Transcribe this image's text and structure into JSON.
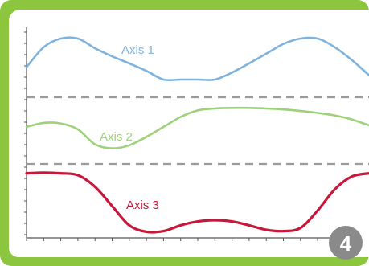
{
  "step_badge": {
    "number": "4"
  },
  "chart_data": {
    "type": "line",
    "title": "",
    "xlabel": "",
    "ylabel": "",
    "grid": false,
    "x": [
      0,
      1,
      2,
      3,
      4,
      5,
      6,
      7,
      8,
      9,
      10,
      11,
      12,
      13,
      14,
      15,
      16,
      17,
      18,
      19,
      20
    ],
    "panels": [
      {
        "id": 1,
        "ylim": [
          0,
          1
        ]
      },
      {
        "id": 2,
        "ylim": [
          0,
          1
        ]
      },
      {
        "id": 3,
        "ylim": [
          0,
          1
        ]
      }
    ],
    "series": [
      {
        "name": "Axis 1",
        "panel": 1,
        "color": "#7fb3dd",
        "values": [
          0.35,
          0.72,
          0.88,
          0.88,
          0.7,
          0.55,
          0.42,
          0.28,
          0.12,
          0.12,
          0.12,
          0.12,
          0.25,
          0.42,
          0.6,
          0.78,
          0.88,
          0.88,
          0.72,
          0.48,
          0.2
        ]
      },
      {
        "name": "Axis 2",
        "panel": 2,
        "color": "#9dd17a",
        "values": [
          0.55,
          0.63,
          0.62,
          0.5,
          0.2,
          0.12,
          0.18,
          0.35,
          0.55,
          0.75,
          0.88,
          0.92,
          0.93,
          0.93,
          0.92,
          0.9,
          0.87,
          0.83,
          0.78,
          0.7,
          0.58
        ]
      },
      {
        "name": "Axis 3",
        "panel": 3,
        "color": "#c8173a",
        "values": [
          0.93,
          0.94,
          0.93,
          0.9,
          0.72,
          0.42,
          0.12,
          0.02,
          0.03,
          0.12,
          0.18,
          0.2,
          0.18,
          0.12,
          0.05,
          0.03,
          0.08,
          0.35,
          0.68,
          0.88,
          0.93
        ]
      }
    ],
    "separators": {
      "style": "dashed",
      "color": "#9a9a9a"
    },
    "axis_color": "#555555"
  }
}
